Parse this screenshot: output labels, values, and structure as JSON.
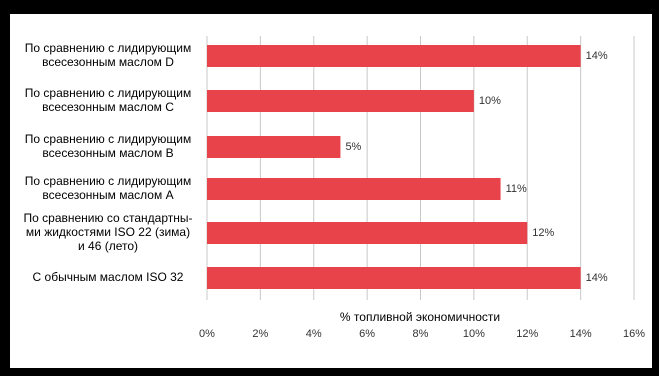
{
  "chart_data": {
    "type": "bar",
    "orientation": "horizontal",
    "categories": [
      [
        "По сравнению с лидирующим",
        "всесезонным маслом D"
      ],
      [
        "По сравнению с лидирующим",
        "всесезонным маслом C"
      ],
      [
        "По сравнению с лидирующим",
        "всесезонным маслом B"
      ],
      [
        "По сравнению с лидирующим",
        "всесезонным маслом A"
      ],
      [
        "По сравнению со стандартны-",
        "ми жидкостями ISO 22 (зима)",
        "и 46 (лето)"
      ],
      [
        "С обычным маслом ISO 32"
      ]
    ],
    "values": [
      14,
      10,
      5,
      11,
      12,
      14
    ],
    "value_labels": [
      "14%",
      "10%",
      "5%",
      "11%",
      "12%",
      "14%"
    ],
    "color": "#e8424a",
    "xlabel": "% топливной экономичности",
    "xlim": [
      0,
      16
    ],
    "xticks": [
      {
        "value": 0,
        "label": "0%"
      },
      {
        "value": 2,
        "label": "2%"
      },
      {
        "value": 4,
        "label": "4%"
      },
      {
        "value": 6,
        "label": "6%"
      },
      {
        "value": 8,
        "label": "8%"
      },
      {
        "value": 10,
        "label": "10%"
      },
      {
        "value": 12,
        "label": "12%"
      },
      {
        "value": 14,
        "label": "14%"
      },
      {
        "value": 16,
        "label": "16%"
      }
    ],
    "grid": true
  }
}
